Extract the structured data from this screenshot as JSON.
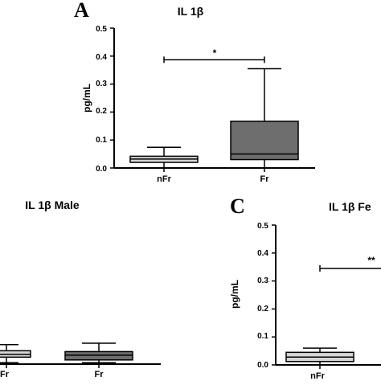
{
  "colors": {
    "nfr_box": "#d6d6d6",
    "fr_box": "#6e6e6e",
    "axis": "#000000",
    "background": "#ffffff"
  },
  "chart_data": [
    {
      "panel": "A",
      "type": "box",
      "title": "IL 1β",
      "ylabel": "pg/mL",
      "ylim": [
        0,
        0.5
      ],
      "yticks": [
        "0.0",
        "0.1",
        "0.2",
        "0.3",
        "0.4",
        "0.5"
      ],
      "categories": [
        "nFr",
        "Fr"
      ],
      "boxes": [
        {
          "name": "nFr",
          "min": 0.0,
          "q1": 0.02,
          "median": 0.032,
          "q3": 0.042,
          "max": 0.074
        },
        {
          "name": "Fr",
          "min": 0.0,
          "q1": 0.03,
          "median": 0.05,
          "q3": 0.167,
          "max": 0.355
        }
      ],
      "significance": {
        "label": "*",
        "y": 0.387
      }
    },
    {
      "panel": "",
      "type": "box",
      "title": "IL 1β Male",
      "categories": [
        "Fr",
        "Fr"
      ],
      "boxes": [
        {
          "name": "Fr",
          "min": 0.005,
          "q1": 0.025,
          "median": 0.035,
          "q3": 0.048,
          "max": 0.07
        },
        {
          "name": "Fr",
          "min": 0.005,
          "q1": 0.015,
          "median": 0.032,
          "q3": 0.045,
          "max": 0.075
        }
      ]
    },
    {
      "panel": "C",
      "type": "box",
      "title": "IL 1β Fe",
      "ylabel": "pg/mL",
      "ylim": [
        0,
        0.5
      ],
      "yticks": [
        "0.0",
        "0.1",
        "0.2",
        "0.3",
        "0.4",
        "0.5"
      ],
      "categories": [
        "nFr"
      ],
      "boxes": [
        {
          "name": "nFr",
          "min": 0.0,
          "q1": 0.012,
          "median": 0.028,
          "q3": 0.045,
          "max": 0.06
        }
      ],
      "significance": {
        "label": "**",
        "y": 0.345
      }
    }
  ]
}
